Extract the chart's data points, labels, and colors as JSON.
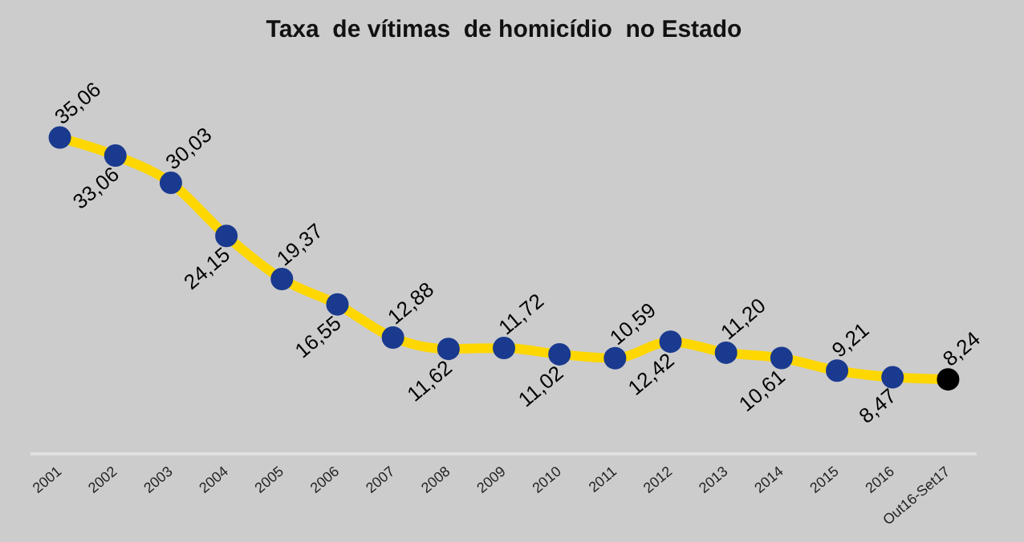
{
  "chart_data": {
    "type": "line",
    "title": "Taxa  de vítimas  de homicídio  no Estado",
    "categories": [
      "2001",
      "2002",
      "2003",
      "2004",
      "2005",
      "2006",
      "2007",
      "2008",
      "2009",
      "2010",
      "2011",
      "2012",
      "2013",
      "2014",
      "2015",
      "2016",
      "Out16-Set17"
    ],
    "series": [
      {
        "color": "#ffd700",
        "values": [
          35.06,
          33.06,
          30.03,
          24.15,
          19.37,
          16.55,
          12.88,
          11.62,
          11.72,
          11.02,
          10.59,
          12.42,
          11.2,
          10.61,
          9.21,
          8.47,
          8.24
        ],
        "value_labels": [
          "35,06",
          "33,06",
          "30,03",
          "24,15",
          "19,37",
          "16,55",
          "12,88",
          "11,62",
          "11,72",
          "11,02",
          "10,59",
          "12,42",
          "11,20",
          "10,61",
          "9,21",
          "8,47",
          "8,24"
        ],
        "colors": [
          "#1a3a8f",
          "#1a3a8f",
          "#1a3a8f",
          "#1a3a8f",
          "#1a3a8f",
          "#1a3a8f",
          "#1a3a8f",
          "#1a3a8f",
          "#1a3a8f",
          "#1a3a8f",
          "#1a3a8f",
          "#1a3a8f",
          "#1a3a8f",
          "#1a3a8f",
          "#1a3a8f",
          "#1a3a8f",
          "#000000"
        ]
      }
    ],
    "marker": "circle",
    "line_style": "solid",
    "grid": false,
    "legend": false,
    "tick_labels": "x"
  }
}
